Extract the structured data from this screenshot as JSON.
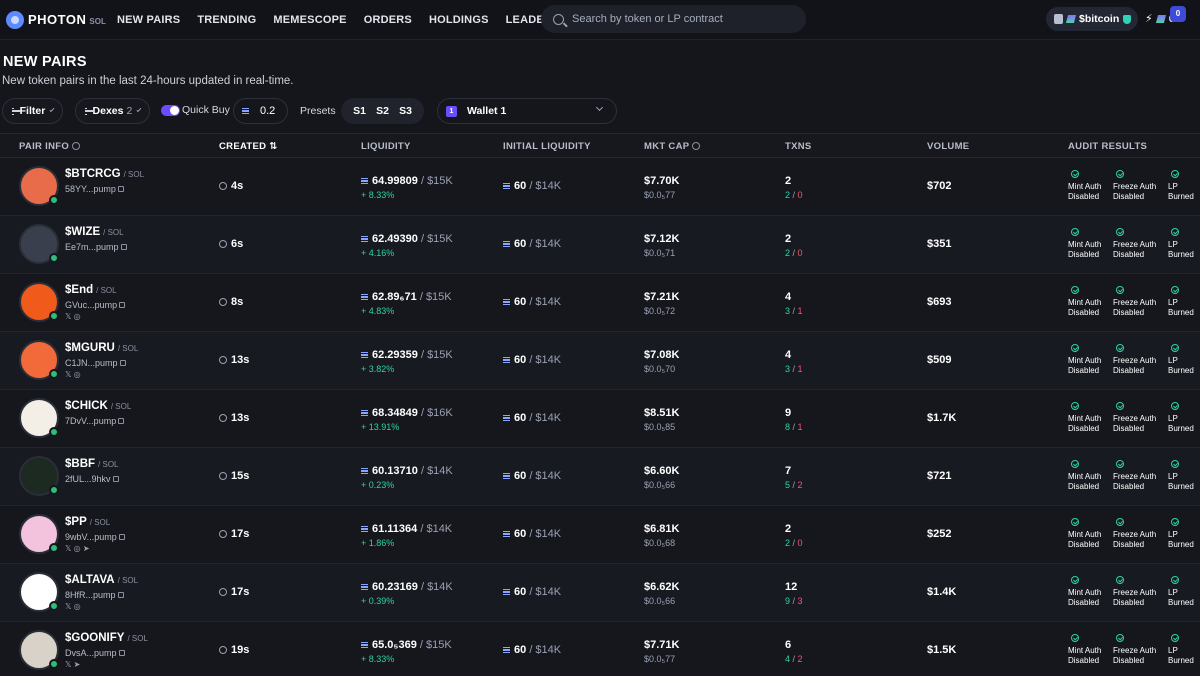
{
  "brand": {
    "name": "PHOTON",
    "sub": "SOL"
  },
  "nav": [
    "NEW PAIRS",
    "TRENDING",
    "MEMESCOPE",
    "ORDERS",
    "HOLDINGS",
    "LEADERBOARD"
  ],
  "search": {
    "placeholder": "Search by token or LP contract"
  },
  "account": {
    "name": "$bitcoin",
    "count": "0",
    "notifications": "0"
  },
  "page": {
    "title": "NEW PAIRS",
    "subtitle": "New token pairs in the last 24-hours updated in real-time."
  },
  "controls": {
    "filter": "Filter",
    "dexes": "Dexes",
    "dexes_count": "2",
    "quick_buy": "Quick Buy",
    "amount": "0.2",
    "presets_label": "Presets",
    "presets": [
      "S1",
      "S2",
      "S3"
    ],
    "wallet": "Wallet 1",
    "wallet_badge": "1"
  },
  "columns": [
    "PAIR INFO",
    "CREATED",
    "LIQUIDITY",
    "INITIAL LIQUIDITY",
    "MKT CAP",
    "TXNS",
    "VOLUME",
    "AUDIT RESULTS"
  ],
  "audit_labels": [
    {
      "line1": "Mint Auth",
      "line2": "Disabled"
    },
    {
      "line1": "Freeze Auth",
      "line2": "Disabled"
    },
    {
      "line1": "LP",
      "line2": "Burned"
    }
  ],
  "pair_suffix": "/ SOL",
  "rows": [
    {
      "symbol": "$BTCRCG",
      "addr": "58YY...pump",
      "socials": "",
      "created": "4s",
      "liq": "64.99809",
      "liq_usd": "/ $15K",
      "liq_pct": "+ 8.33%",
      "init": "60",
      "init_usd": "/ $14K",
      "mcap": "$7.70K",
      "price": "$0.0₅77",
      "txns": "2",
      "buys": "2",
      "sells": "0",
      "volume": "$702",
      "avatar_color": "#e86b4a"
    },
    {
      "symbol": "$WIZE",
      "addr": "Ee7m...pump",
      "socials": "",
      "created": "6s",
      "liq": "62.49390",
      "liq_usd": "/ $15K",
      "liq_pct": "+ 4.16%",
      "init": "60",
      "init_usd": "/ $14K",
      "mcap": "$7.12K",
      "price": "$0.0₅71",
      "txns": "2",
      "buys": "2",
      "sells": "0",
      "volume": "$351",
      "avatar_color": "#3a3f4d"
    },
    {
      "symbol": "$End",
      "addr": "GVuc...pump",
      "socials": "𝕏 ◎",
      "created": "8s",
      "liq": "62.89₆71",
      "liq_usd": "/ $15K",
      "liq_pct": "+ 4.83%",
      "init": "60",
      "init_usd": "/ $14K",
      "mcap": "$7.21K",
      "price": "$0.0₅72",
      "txns": "4",
      "buys": "3",
      "sells": "1",
      "volume": "$693",
      "avatar_color": "#f05a1a"
    },
    {
      "symbol": "$MGURU",
      "addr": "C1JN...pump",
      "socials": "𝕏 ◎",
      "created": "13s",
      "liq": "62.29359",
      "liq_usd": "/ $15K",
      "liq_pct": "+ 3.82%",
      "init": "60",
      "init_usd": "/ $14K",
      "mcap": "$7.08K",
      "price": "$0.0₅70",
      "txns": "4",
      "buys": "3",
      "sells": "1",
      "volume": "$509",
      "avatar_color": "#f26a3a"
    },
    {
      "symbol": "$CHICK",
      "addr": "7DvV...pump",
      "socials": "",
      "created": "13s",
      "liq": "68.34849",
      "liq_usd": "/ $16K",
      "liq_pct": "+ 13.91%",
      "init": "60",
      "init_usd": "/ $14K",
      "mcap": "$8.51K",
      "price": "$0.0₅85",
      "txns": "9",
      "buys": "8",
      "sells": "1",
      "volume": "$1.7K",
      "avatar_color": "#f4efe6"
    },
    {
      "symbol": "$BBF",
      "addr": "2fUL...9hkv",
      "socials": "",
      "created": "15s",
      "liq": "60.13710",
      "liq_usd": "/ $14K",
      "liq_pct": "+ 0.23%",
      "init": "60",
      "init_usd": "/ $14K",
      "mcap": "$6.60K",
      "price": "$0.0₅66",
      "txns": "7",
      "buys": "5",
      "sells": "2",
      "volume": "$721",
      "avatar_color": "#1d2a22"
    },
    {
      "symbol": "$PP",
      "addr": "9wbV...pump",
      "socials": "𝕏 ◎ ➤",
      "created": "17s",
      "liq": "61.11364",
      "liq_usd": "/ $14K",
      "liq_pct": "+ 1.86%",
      "init": "60",
      "init_usd": "/ $14K",
      "mcap": "$6.81K",
      "price": "$0.0₅68",
      "txns": "2",
      "buys": "2",
      "sells": "0",
      "volume": "$252",
      "avatar_color": "#f3c2dd"
    },
    {
      "symbol": "$ALTAVA",
      "addr": "8HfR...pump",
      "socials": "𝕏 ◎",
      "created": "17s",
      "liq": "60.23169",
      "liq_usd": "/ $14K",
      "liq_pct": "+ 0.39%",
      "init": "60",
      "init_usd": "/ $14K",
      "mcap": "$6.62K",
      "price": "$0.0₅66",
      "txns": "12",
      "buys": "9",
      "sells": "3",
      "volume": "$1.4K",
      "avatar_color": "#ffffff"
    },
    {
      "symbol": "$GOONIFY",
      "addr": "DvsA...pump",
      "socials": "𝕏 ➤",
      "created": "19s",
      "liq": "65.0₅369",
      "liq_usd": "/ $15K",
      "liq_pct": "+ 8.33%",
      "init": "60",
      "init_usd": "/ $14K",
      "mcap": "$7.71K",
      "price": "$0.0₅77",
      "txns": "6",
      "buys": "4",
      "sells": "2",
      "volume": "$1.5K",
      "avatar_color": "#d9d2c8"
    }
  ]
}
